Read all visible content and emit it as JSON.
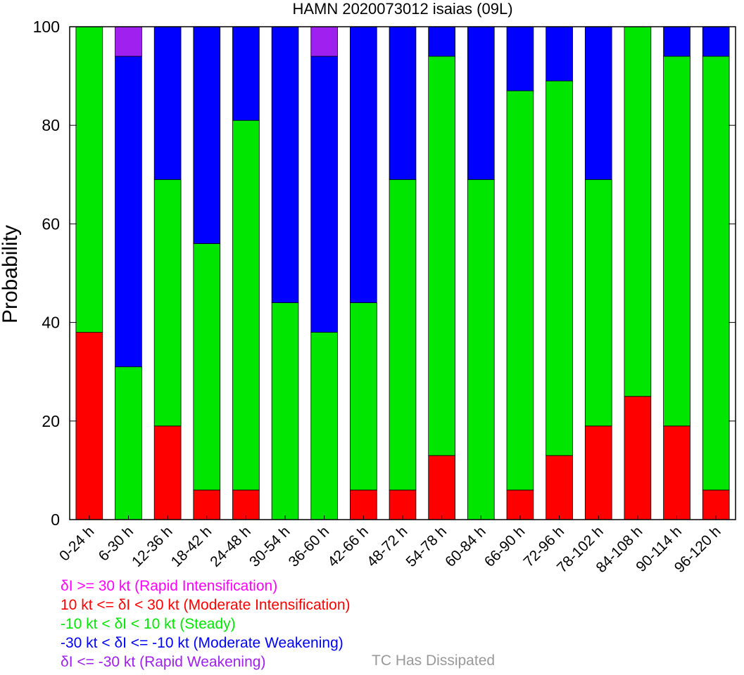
{
  "chart_data": {
    "type": "bar",
    "stacked": true,
    "title": "HAMN 2020073012 isaias (09L)",
    "xlabel": "",
    "ylabel": "Probability",
    "ylim": [
      0,
      100
    ],
    "yticks": [
      0,
      20,
      40,
      60,
      80,
      100
    ],
    "grid": false,
    "categories": [
      "0-24 h",
      "6-30 h",
      "12-36 h",
      "18-42 h",
      "24-48 h",
      "30-54 h",
      "36-60 h",
      "42-66 h",
      "48-72 h",
      "54-78 h",
      "60-84 h",
      "66-90 h",
      "72-96 h",
      "78-102 h",
      "84-108 h",
      "90-114 h",
      "96-120 h"
    ],
    "series": [
      {
        "key": "mod_intens",
        "color": "#ff0000",
        "values": [
          38,
          0,
          19,
          6,
          6,
          0,
          0,
          6,
          6,
          13,
          0,
          6,
          13,
          19,
          25,
          19,
          6
        ]
      },
      {
        "key": "steady",
        "color": "#00e600",
        "values": [
          62,
          31,
          50,
          50,
          75,
          44,
          38,
          38,
          63,
          81,
          69,
          81,
          76,
          50,
          75,
          75,
          88
        ]
      },
      {
        "key": "mod_weak",
        "color": "#0000ff",
        "values": [
          0,
          63,
          31,
          44,
          19,
          56,
          56,
          56,
          31,
          6,
          31,
          13,
          11,
          31,
          0,
          6,
          6
        ]
      },
      {
        "key": "rapid_weak",
        "color": "#a020f0",
        "values": [
          0,
          6,
          0,
          0,
          0,
          0,
          6,
          0,
          0,
          0,
          0,
          0,
          0,
          0,
          0,
          0,
          0
        ]
      }
    ]
  },
  "legend": [
    {
      "text": "δI >= 30 kt (Rapid Intensification)",
      "color": "#ff00ff"
    },
    {
      "text": "10 kt <= δI < 30 kt (Moderate Intensification)",
      "color": "#ff0000"
    },
    {
      "text": "-10 kt < δI < 10 kt (Steady)",
      "color": "#00e600"
    },
    {
      "text": "-30 kt < δI <= -10 kt (Moderate Weakening)",
      "color": "#0000ff"
    },
    {
      "text": "δI <= -30 kt (Rapid Weakening)",
      "color": "#a020f0"
    }
  ],
  "dissipated": {
    "text": "TC Has Dissipated",
    "color": "#999999"
  }
}
